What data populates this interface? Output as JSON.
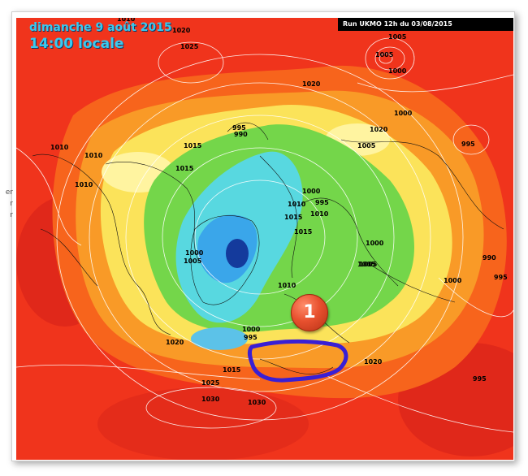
{
  "header": {
    "date": "dimanche 9 août 2015",
    "time": "14:00 locale",
    "run": "Run UKMO 12h du 03/08/2015"
  },
  "left_edge": [
    "er",
    "r",
    "r"
  ],
  "marker": {
    "label": "1"
  },
  "highlight_region": {
    "color": "#3a1fd4"
  },
  "colors": {
    "red": "#f0341c",
    "orange": "#f7641c",
    "light_orange": "#f99a27",
    "yellow": "#fbe35a",
    "pale_yellow": "#fff4a0",
    "green": "#74d64a",
    "cyan": "#58d8e0",
    "blue": "#3aa6ea",
    "dark_blue": "#143a9c"
  },
  "isobar_labels": [
    "1010",
    "1020",
    "1025",
    "1020",
    "1005",
    "1000",
    "1005",
    "1000",
    "1020",
    "995",
    "990",
    "1010",
    "1015",
    "1005",
    "995",
    "1010",
    "1010",
    "1015",
    "1010",
    "1000",
    "995",
    "1010",
    "1015",
    "1015",
    "1000",
    "1005",
    "1005",
    "1000",
    "1005",
    "1010",
    "990",
    "1000",
    "995",
    "1000",
    "995",
    "1020",
    "1015",
    "1025",
    "1030",
    "1030",
    "1020",
    "995"
  ]
}
